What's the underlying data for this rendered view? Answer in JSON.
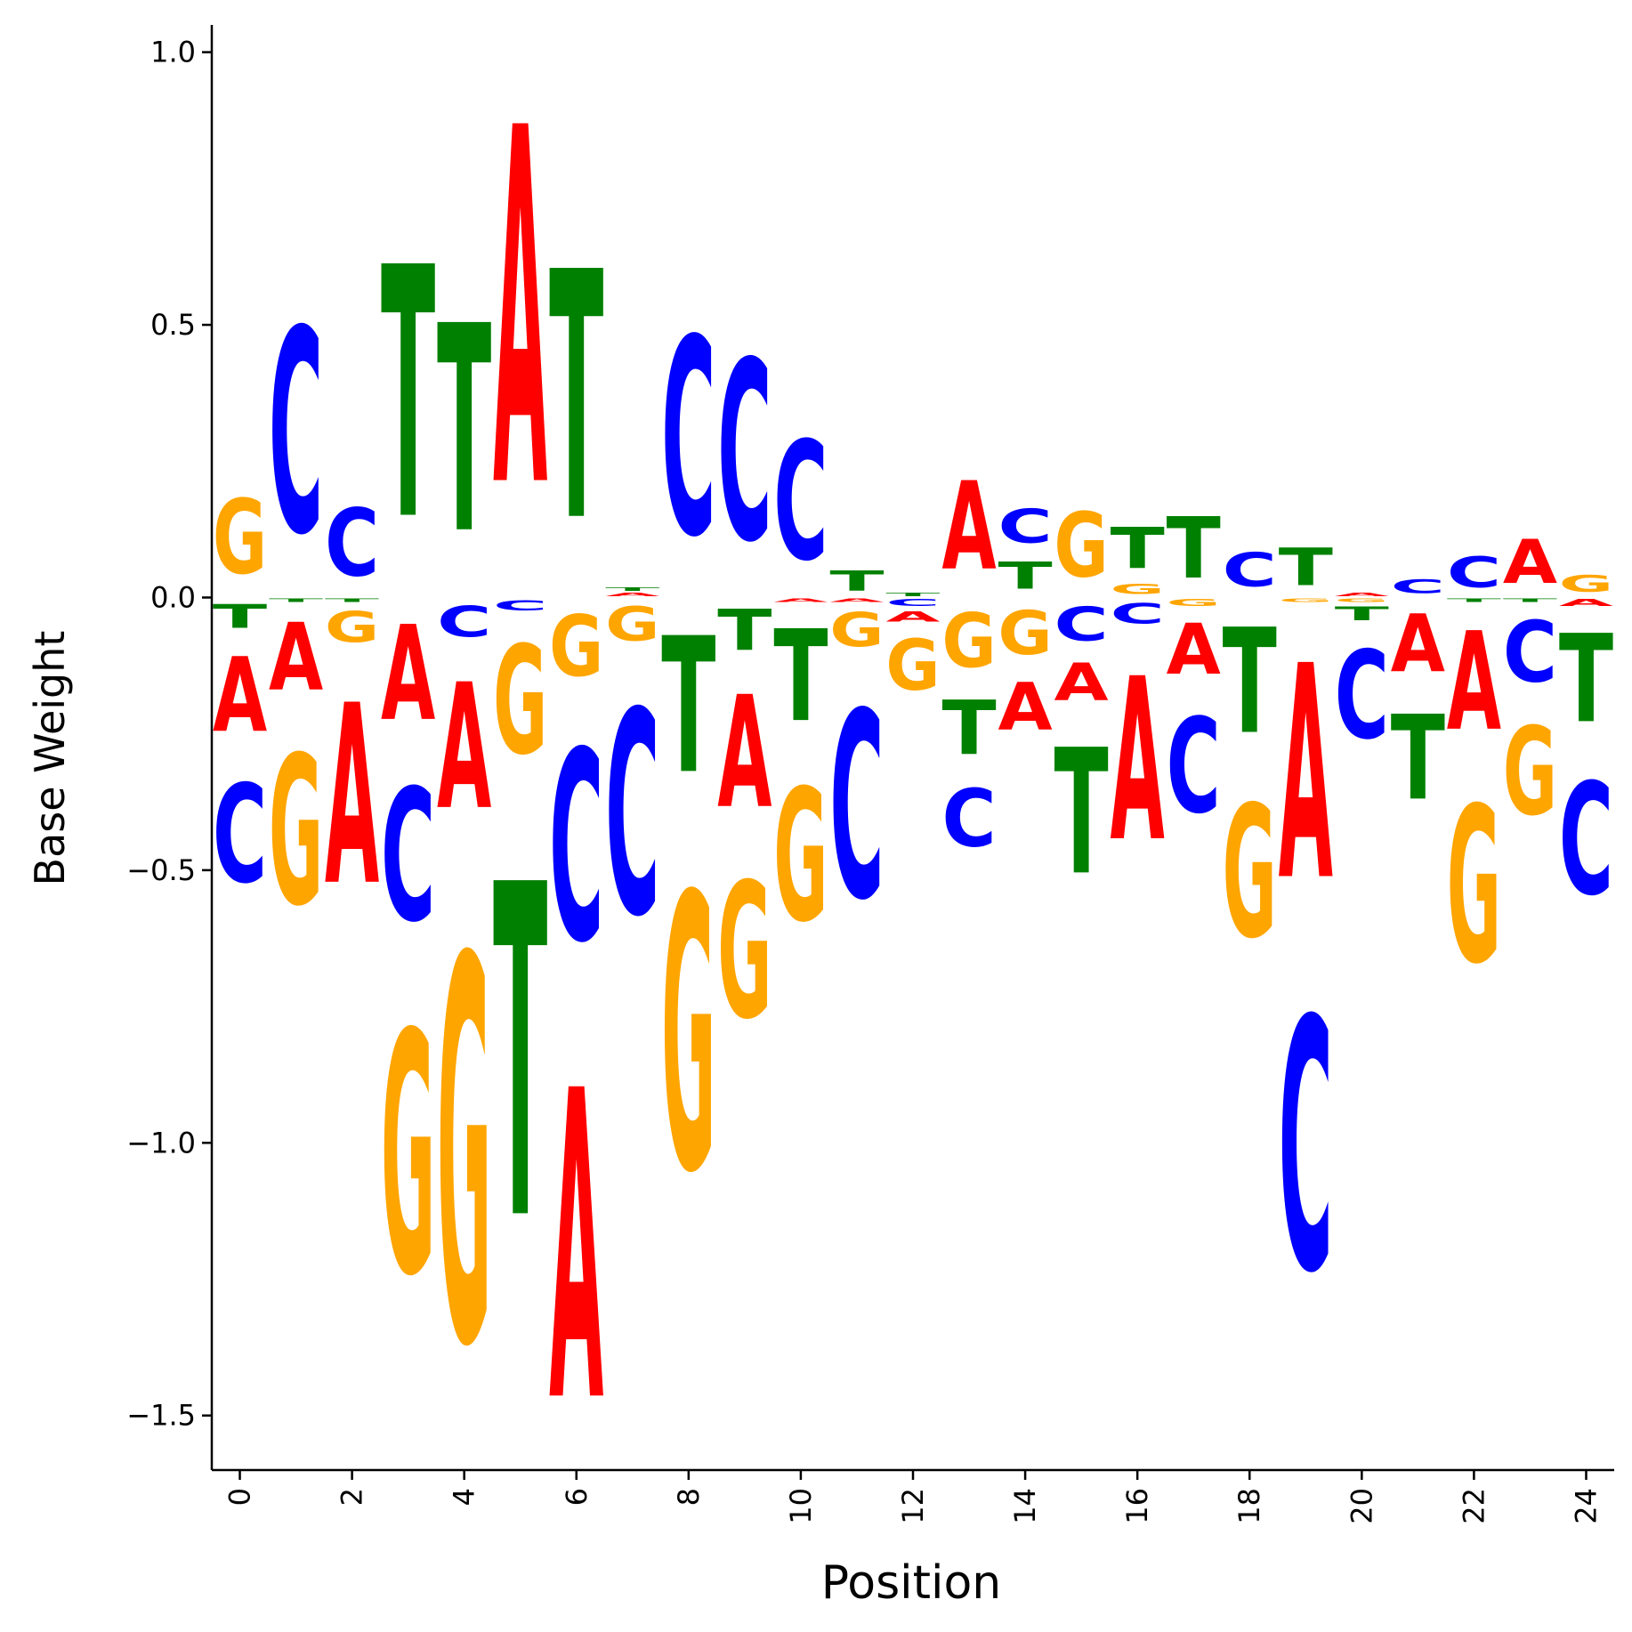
{
  "chart_data": {
    "type": "sequence-logo",
    "xlabel": "Position",
    "ylabel": "Base Weight",
    "xlim": [
      -0.5,
      24.5
    ],
    "ylim": [
      -1.6,
      1.05
    ],
    "xticks": [
      0,
      2,
      4,
      6,
      8,
      10,
      12,
      14,
      16,
      18,
      20,
      22,
      24
    ],
    "yticks": [
      -1.5,
      -1.0,
      -0.5,
      0.0,
      0.5,
      1.0
    ],
    "ytick_labels": [
      "−1.5",
      "−1.0",
      "−0.5",
      "0.0",
      "0.5",
      "1.0"
    ],
    "colors": {
      "A": "#ff0000",
      "C": "#0000ff",
      "G": "#ffa500",
      "T": "#008000"
    },
    "positions": [
      {
        "x": 0,
        "A": -0.22,
        "C": -0.29,
        "G": 0.22,
        "T": -0.07
      },
      {
        "x": 1,
        "A": -0.2,
        "C": 0.6,
        "G": -0.44,
        "T": -0.01
      },
      {
        "x": 2,
        "A": -0.53,
        "C": 0.2,
        "G": -0.09,
        "T": -0.01
      },
      {
        "x": 3,
        "A": -0.28,
        "C": -0.39,
        "G": -0.71,
        "T": 0.74
      },
      {
        "x": 4,
        "A": -0.37,
        "C": -0.09,
        "G": -1.13,
        "T": 0.61
      },
      {
        "x": 5,
        "A": 1.05,
        "C": -0.03,
        "G": -0.32,
        "T": -0.98
      },
      {
        "x": 6,
        "A": -0.91,
        "C": -0.56,
        "G": -0.18,
        "T": 0.73
      },
      {
        "x": 7,
        "A": 0.01,
        "C": -0.6,
        "G": -0.1,
        "T": 0.01
      },
      {
        "x": 8,
        "A": 0.0,
        "C": 0.58,
        "G": -0.81,
        "T": -0.4
      },
      {
        "x": 9,
        "A": -0.33,
        "C": 0.53,
        "G": -0.4,
        "T": -0.12
      },
      {
        "x": 10,
        "A": -0.01,
        "C": 0.35,
        "G": -0.39,
        "T": -0.27
      },
      {
        "x": 11,
        "A": -0.01,
        "C": -0.55,
        "G": -0.1,
        "T": 0.06
      },
      {
        "x": 12,
        "A": -0.03,
        "C": -0.02,
        "G": -0.15,
        "T": 0.01
      },
      {
        "x": 13,
        "A": 0.26,
        "C": -0.17,
        "G": -0.16,
        "T": -0.16
      },
      {
        "x": 14,
        "A": -0.14,
        "C": 0.1,
        "G": -0.13,
        "T": 0.08
      },
      {
        "x": 15,
        "A": -0.11,
        "C": -0.1,
        "G": 0.19,
        "T": -0.37
      },
      {
        "x": 16,
        "A": -0.48,
        "C": -0.06,
        "G": 0.03,
        "T": 0.12
      },
      {
        "x": 17,
        "A": -0.15,
        "C": -0.28,
        "G": -0.02,
        "T": 0.18
      },
      {
        "x": 18,
        "A": 0.0,
        "C": 0.1,
        "G": -0.39,
        "T": -0.31
      },
      {
        "x": 19,
        "A": -0.63,
        "C": -0.74,
        "G": -0.01,
        "T": 0.11
      },
      {
        "x": 20,
        "A": 0.01,
        "C": -0.26,
        "G": -0.01,
        "T": -0.04
      },
      {
        "x": 21,
        "A": -0.17,
        "C": 0.04,
        "G": 0.0,
        "T": -0.25
      },
      {
        "x": 22,
        "A": -0.29,
        "C": 0.09,
        "G": -0.46,
        "T": -0.01
      },
      {
        "x": 23,
        "A": 0.13,
        "C": -0.18,
        "G": -0.26,
        "T": -0.01
      },
      {
        "x": 24,
        "A": -0.02,
        "C": -0.33,
        "G": 0.05,
        "T": -0.26
      }
    ]
  }
}
